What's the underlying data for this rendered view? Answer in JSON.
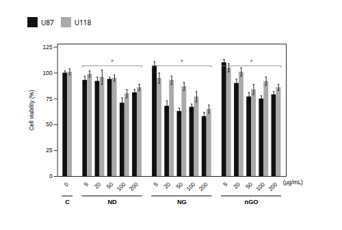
{
  "chart_data": {
    "type": "bar",
    "categories": [
      "0",
      "5",
      "20",
      "50",
      "100",
      "200",
      "5",
      "20",
      "50",
      "100",
      "200",
      "5",
      "20",
      "50",
      "100",
      "200"
    ],
    "series": [
      {
        "name": "U87",
        "color": "#111111",
        "values": [
          100,
          93,
          92,
          94,
          71,
          81,
          107,
          68,
          63,
          67,
          58,
          110,
          90,
          77,
          75,
          79
        ],
        "errors": [
          2,
          4,
          4,
          2,
          5,
          3,
          4,
          5,
          3,
          3,
          4,
          3,
          4,
          4,
          3,
          3
        ]
      },
      {
        "name": "U118",
        "color": "#aaaaaa",
        "values": [
          101,
          99,
          96,
          95,
          80,
          86,
          95,
          93,
          87,
          77,
          65,
          105,
          101,
          84,
          92,
          86
        ],
        "errors": [
          3,
          3,
          7,
          3,
          4,
          3,
          5,
          4,
          4,
          5,
          4,
          4,
          4,
          5,
          4,
          3
        ]
      }
    ],
    "ylabel": "Cell viability (%)",
    "xlabel": "(μg/mL)",
    "ylim": [
      0,
      128
    ],
    "yticks": [
      0,
      25,
      50,
      75,
      100,
      125
    ],
    "grid": false,
    "legend": "top",
    "brackets": [
      {
        "from": 1,
        "to": 5,
        "y": 107,
        "label": "*"
      },
      {
        "from": 6,
        "to": 10,
        "y": 107,
        "label": "*"
      },
      {
        "from": 11,
        "to": 15,
        "y": 107,
        "label": "*"
      }
    ],
    "groups": [
      {
        "label": "C",
        "start": 0,
        "end": 0
      },
      {
        "label": "ND",
        "start": 1,
        "end": 5
      },
      {
        "label": "NG",
        "start": 6,
        "end": 10
      },
      {
        "label": "nGO",
        "start": 11,
        "end": 15
      }
    ]
  }
}
